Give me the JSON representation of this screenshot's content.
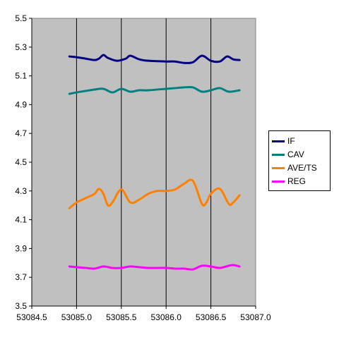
{
  "chart_data": {
    "type": "line",
    "title": "",
    "xlabel": "",
    "ylabel": "",
    "xlim": [
      53084.5,
      53087.0
    ],
    "ylim": [
      3.5,
      5.5
    ],
    "x_ticks": [
      "53084.5",
      "53085.0",
      "53085.5",
      "53086.0",
      "53086.5",
      "53087.0"
    ],
    "y_ticks": [
      "3.5",
      "3.7",
      "3.9",
      "4.1",
      "4.3",
      "4.5",
      "4.7",
      "4.9",
      "5.1",
      "5.3",
      "5.5"
    ],
    "grid": "vertical",
    "legend_position": "right",
    "plot_background": "#c0c0c0",
    "series": [
      {
        "name": "IF",
        "color": "#000080",
        "x": [
          53084.92,
          53085.0,
          53085.1,
          53085.2,
          53085.25,
          53085.3,
          53085.35,
          53085.45,
          53085.55,
          53085.6,
          53085.7,
          53085.8,
          53086.0,
          53086.1,
          53086.2,
          53086.3,
          53086.4,
          53086.5,
          53086.6,
          53086.68,
          53086.75,
          53086.82
        ],
        "y": [
          5.235,
          5.23,
          5.22,
          5.21,
          5.22,
          5.245,
          5.225,
          5.205,
          5.22,
          5.24,
          5.215,
          5.205,
          5.2,
          5.2,
          5.19,
          5.195,
          5.24,
          5.205,
          5.2,
          5.235,
          5.215,
          5.21
        ]
      },
      {
        "name": "CAV",
        "color": "#008080",
        "x": [
          53084.92,
          53085.0,
          53085.1,
          53085.2,
          53085.3,
          53085.4,
          53085.5,
          53085.6,
          53085.7,
          53085.8,
          53086.0,
          53086.1,
          53086.2,
          53086.3,
          53086.4,
          53086.5,
          53086.6,
          53086.7,
          53086.82
        ],
        "y": [
          4.975,
          4.985,
          4.995,
          5.005,
          5.01,
          4.985,
          5.01,
          4.99,
          5.0,
          5.0,
          5.01,
          5.015,
          5.02,
          5.02,
          4.99,
          5.0,
          5.015,
          4.99,
          5.0
        ]
      },
      {
        "name": "AVE/TS",
        "color": "#ff8000",
        "x": [
          53084.92,
          53085.0,
          53085.1,
          53085.2,
          53085.25,
          53085.3,
          53085.35,
          53085.4,
          53085.5,
          53085.6,
          53085.7,
          53085.8,
          53085.9,
          53086.0,
          53086.1,
          53086.2,
          53086.3,
          53086.4,
          53086.45,
          53086.5,
          53086.6,
          53086.7,
          53086.75,
          53086.82
        ],
        "y": [
          4.18,
          4.22,
          4.25,
          4.28,
          4.315,
          4.28,
          4.2,
          4.22,
          4.31,
          4.22,
          4.24,
          4.28,
          4.3,
          4.3,
          4.31,
          4.35,
          4.37,
          4.21,
          4.22,
          4.28,
          4.315,
          4.21,
          4.22,
          4.27
        ]
      },
      {
        "name": "REG",
        "color": "#ff00ff",
        "x": [
          53084.92,
          53085.0,
          53085.1,
          53085.2,
          53085.3,
          53085.4,
          53085.5,
          53085.6,
          53085.7,
          53085.8,
          53086.0,
          53086.1,
          53086.2,
          53086.3,
          53086.4,
          53086.5,
          53086.6,
          53086.7,
          53086.75,
          53086.82
        ],
        "y": [
          3.775,
          3.77,
          3.765,
          3.76,
          3.775,
          3.765,
          3.765,
          3.775,
          3.77,
          3.765,
          3.765,
          3.76,
          3.76,
          3.755,
          3.78,
          3.775,
          3.765,
          3.78,
          3.785,
          3.775
        ]
      }
    ]
  }
}
